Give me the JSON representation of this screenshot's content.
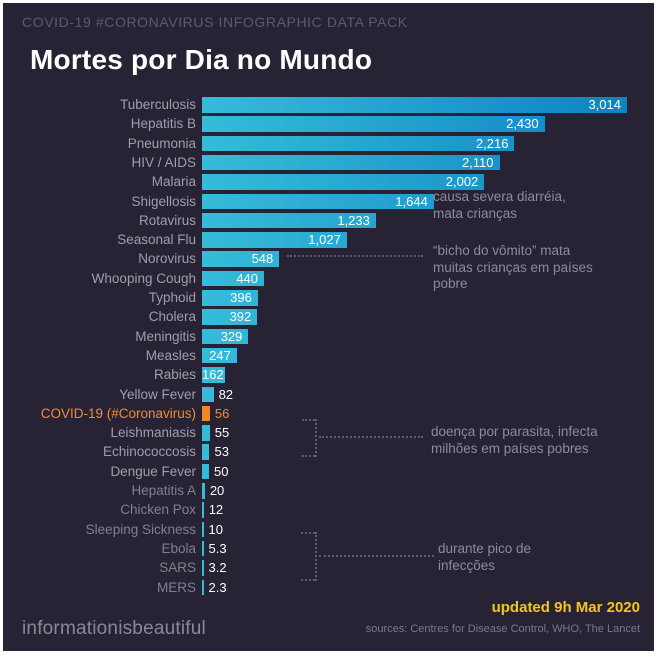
{
  "header": {
    "kicker": "COVID-19 #CORONAVIRUS INFOGRAPHIC DATA PACK",
    "title": "Mortes por Dia no Mundo"
  },
  "chart_data": {
    "type": "bar",
    "orientation": "horizontal",
    "title": "Mortes por Dia no Mundo",
    "xlim": [
      0,
      3014
    ],
    "grid": false,
    "categories": [
      "Tuberculosis",
      "Hepatitis B",
      "Pneumonia",
      "HIV / AIDS",
      "Malaria",
      "Shigellosis",
      "Rotavirus",
      "Seasonal Flu",
      "Norovirus",
      "Whooping Cough",
      "Typhoid",
      "Cholera",
      "Meningitis",
      "Measles",
      "Rabies",
      "Yellow Fever",
      "COVID-19 (#Coronavirus)",
      "Leishmaniasis",
      "Echinococcosis",
      "Dengue Fever",
      "Hepatitis A",
      "Chicken Pox",
      "Sleeping Sickness",
      "Ebola",
      "SARS",
      "MERS"
    ],
    "values": [
      3014,
      2430,
      2216,
      2110,
      2002,
      1644,
      1233,
      1027,
      548,
      440,
      396,
      392,
      329,
      247,
      162,
      82,
      56,
      55,
      53,
      50,
      20,
      12,
      10,
      5.3,
      3.2,
      2.3
    ],
    "value_labels": [
      "3,014",
      "2,430",
      "2,216",
      "2,110",
      "2,002",
      "1,644",
      "1,233",
      "1,027",
      "548",
      "440",
      "396",
      "392",
      "329",
      "247",
      "162",
      "82",
      "56",
      "55",
      "53",
      "50",
      "20",
      "12",
      "10",
      "5.3",
      "3.2",
      "2.3"
    ],
    "highlight_category": "COVID-19 (#Coronavirus)",
    "colors": {
      "background": "#272335",
      "bar_gradient_start": "#35bcd9",
      "bar_gradient_end": "#0d83c3",
      "highlight": "#f0882a",
      "accent_yellow": "#f2c61d"
    }
  },
  "annotations": {
    "shigellosis": "causa severa diarréia,\nmata crianças",
    "norovirus": "“bicho do vômito” mata\nmuitas crianças em países\npobre",
    "parasite": "doença por parasita, infecta\nmilhões em países pobres",
    "peak": "durante pico de\ninfecções"
  },
  "footer": {
    "brand": "informationisbeautiful",
    "updated": "updated 9h Mar 2020",
    "sources": "sources: Centres for Disease Control, WHO, The Lancet"
  }
}
